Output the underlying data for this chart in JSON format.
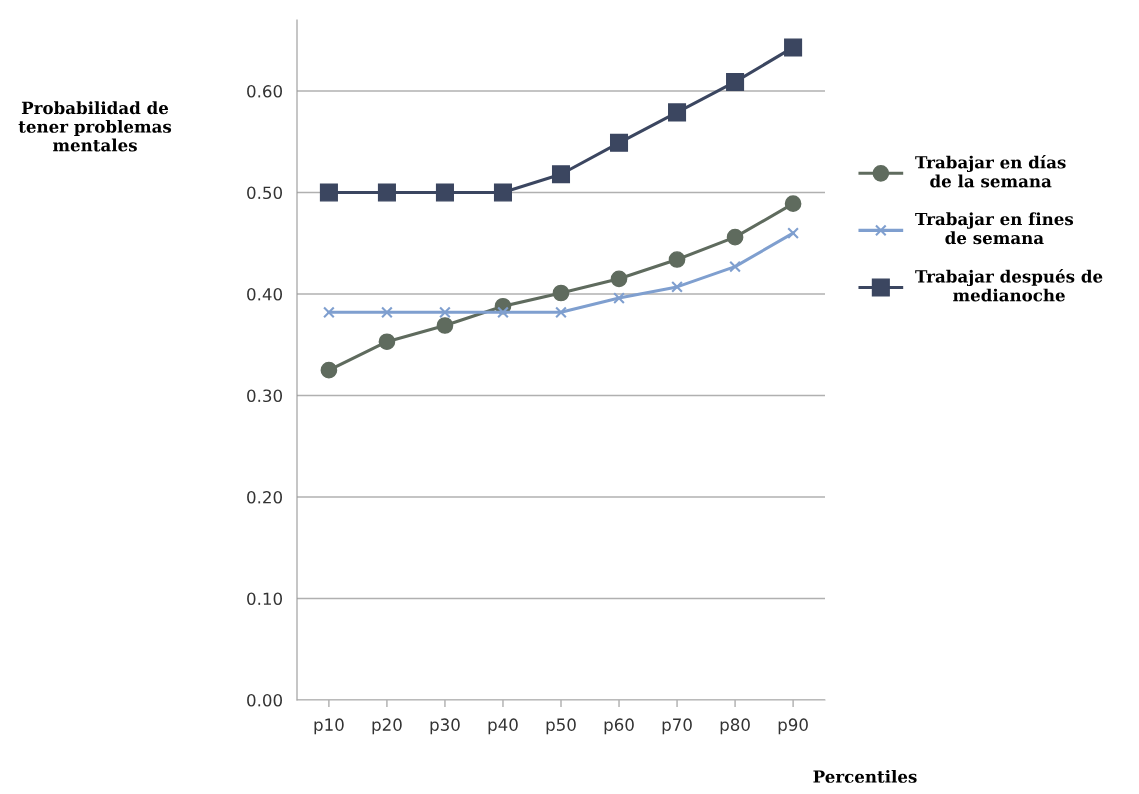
{
  "chart_data": {
    "type": "line",
    "ylabel": "Probabilidad de\ntener problemas\nmentales",
    "xlabel": "Percentiles",
    "categories": [
      "p10",
      "p20",
      "p30",
      "p40",
      "p50",
      "p60",
      "p70",
      "p80",
      "p90"
    ],
    "series": [
      {
        "name": "Trabajar en días\nde la semana",
        "color": "#5f6b5e",
        "marker": "circle",
        "values": [
          0.325,
          0.353,
          0.369,
          0.388,
          0.401,
          0.415,
          0.434,
          0.456,
          0.489
        ]
      },
      {
        "name": "Trabajar en fines\nde semana",
        "color": "#7f9fcf",
        "marker": "cross",
        "values": [
          0.382,
          0.382,
          0.382,
          0.382,
          0.382,
          0.396,
          0.407,
          0.427,
          0.46
        ]
      },
      {
        "name": "Trabajar después de\nmedianoche",
        "color": "#3b4660",
        "marker": "square",
        "values": [
          0.5,
          0.5,
          0.5,
          0.5,
          0.518,
          0.549,
          0.579,
          0.609,
          0.643
        ]
      }
    ],
    "ylim": [
      0,
      0.67
    ],
    "yticks": [
      {
        "value": 0,
        "label": "0.00"
      },
      {
        "value": 0.1,
        "label": "0.10"
      },
      {
        "value": 0.2,
        "label": "0.20"
      },
      {
        "value": 0.3,
        "label": "0.30"
      },
      {
        "value": 0.4,
        "label": "0.40"
      },
      {
        "value": 0.5,
        "label": "0.50"
      },
      {
        "value": 0.6,
        "label": "0.60"
      }
    ],
    "grid": "y",
    "legend": "right"
  }
}
